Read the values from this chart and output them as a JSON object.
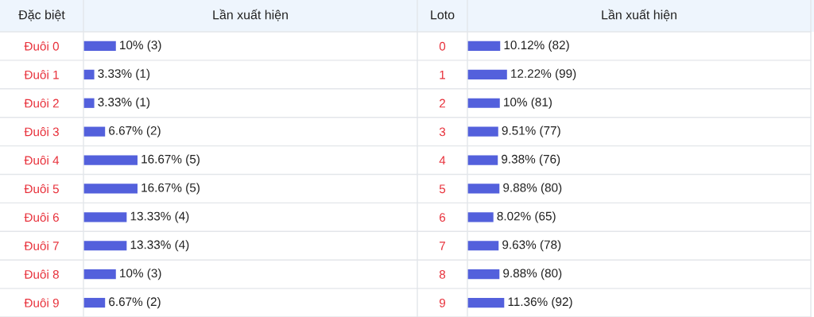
{
  "chart_data": [
    {
      "type": "bar",
      "orientation": "horizontal",
      "title": "Lần xuất hiện",
      "ylabel": "Đặc biệt",
      "categories": [
        "Đuôi 0",
        "Đuôi 1",
        "Đuôi 2",
        "Đuôi 3",
        "Đuôi 4",
        "Đuôi 5",
        "Đuôi 6",
        "Đuôi 7",
        "Đuôi 8",
        "Đuôi 9"
      ],
      "values": [
        10,
        3.33,
        3.33,
        6.67,
        16.67,
        16.67,
        13.33,
        13.33,
        10,
        6.67
      ],
      "value_labels": [
        "10% (3)",
        "3.33% (1)",
        "3.33% (1)",
        "6.67% (2)",
        "16.67% (5)",
        "16.67% (5)",
        "13.33% (4)",
        "13.33% (4)",
        "10% (3)",
        "6.67% (2)"
      ],
      "color": "#5360dc",
      "xlim": [
        0,
        103
      ],
      "tick_labels": "y",
      "grid": false,
      "legend": false
    },
    {
      "type": "bar",
      "orientation": "horizontal",
      "title": "Lần xuất hiện",
      "ylabel": "Loto",
      "categories": [
        "0",
        "1",
        "2",
        "3",
        "4",
        "5",
        "6",
        "7",
        "8",
        "9"
      ],
      "values": [
        10.12,
        12.22,
        10,
        9.51,
        9.38,
        9.88,
        8.02,
        9.63,
        9.88,
        11.36
      ],
      "value_labels": [
        "10.12% (82)",
        "12.22% (99)",
        "10% (81)",
        "9.51% (77)",
        "9.38% (76)",
        "9.88% (80)",
        "8.02% (65)",
        "9.63% (78)",
        "9.88% (80)",
        "11.36% (92)"
      ],
      "color": "#5360dc",
      "xlim": [
        0,
        106
      ],
      "tick_labels": "y",
      "grid": false,
      "legend": false
    }
  ]
}
